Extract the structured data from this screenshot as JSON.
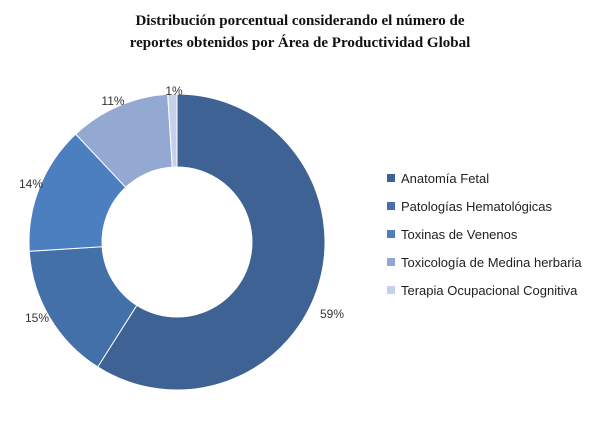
{
  "chart_data": {
    "type": "pie",
    "title_line1": "Distribución porcentual considerando el número de",
    "title_line2": "reportes obtenidos por Área de Productividad Global",
    "legend_position": "right",
    "slices": [
      {
        "name": "Anatomía Fetal",
        "value": 59,
        "label": "59%",
        "color": "#3e6294"
      },
      {
        "name": "Patologías Hematológicas",
        "value": 15,
        "label": "15%",
        "color": "#4470a9"
      },
      {
        "name": "Toxinas de Venenos",
        "value": 14,
        "label": "14%",
        "color": "#4c7fc0"
      },
      {
        "name": "Toxicología de Medina herbaria",
        "value": 11,
        "label": "11%",
        "color": "#93a9d2"
      },
      {
        "name": "Terapia Ocupacional Cognitiva",
        "value": 1,
        "label": "1%",
        "color": "#c5d1e8"
      }
    ]
  }
}
